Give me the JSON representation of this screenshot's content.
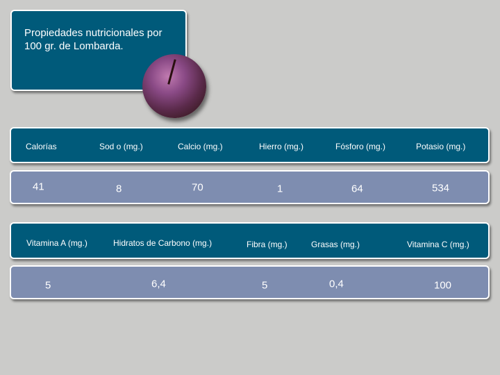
{
  "title": "Propiedades nutricionales por 100 gr. de Lombarda.",
  "image": "red-cabbage",
  "colors": {
    "background": "#cbcbc9",
    "header": "#005a7a",
    "values": "#7e8db0"
  },
  "table1": {
    "headers": [
      "Calorías",
      "Sod o (mg.)",
      "Calcio (mg.)",
      "Hierro (mg.)",
      "Fósforo (mg.)",
      "Potasio (mg.)"
    ],
    "values": [
      "41",
      "8",
      "70",
      "1",
      "64",
      "534"
    ]
  },
  "table2": {
    "headers": [
      "Vitamina A (mg.)",
      "Hidratos de Carbono (mg.)",
      "Fibra (mg.)",
      "Grasas (mg.)",
      "Vitamina C (mg.)"
    ],
    "values": [
      "5",
      "6,4",
      "5",
      "0,4",
      "100"
    ]
  }
}
